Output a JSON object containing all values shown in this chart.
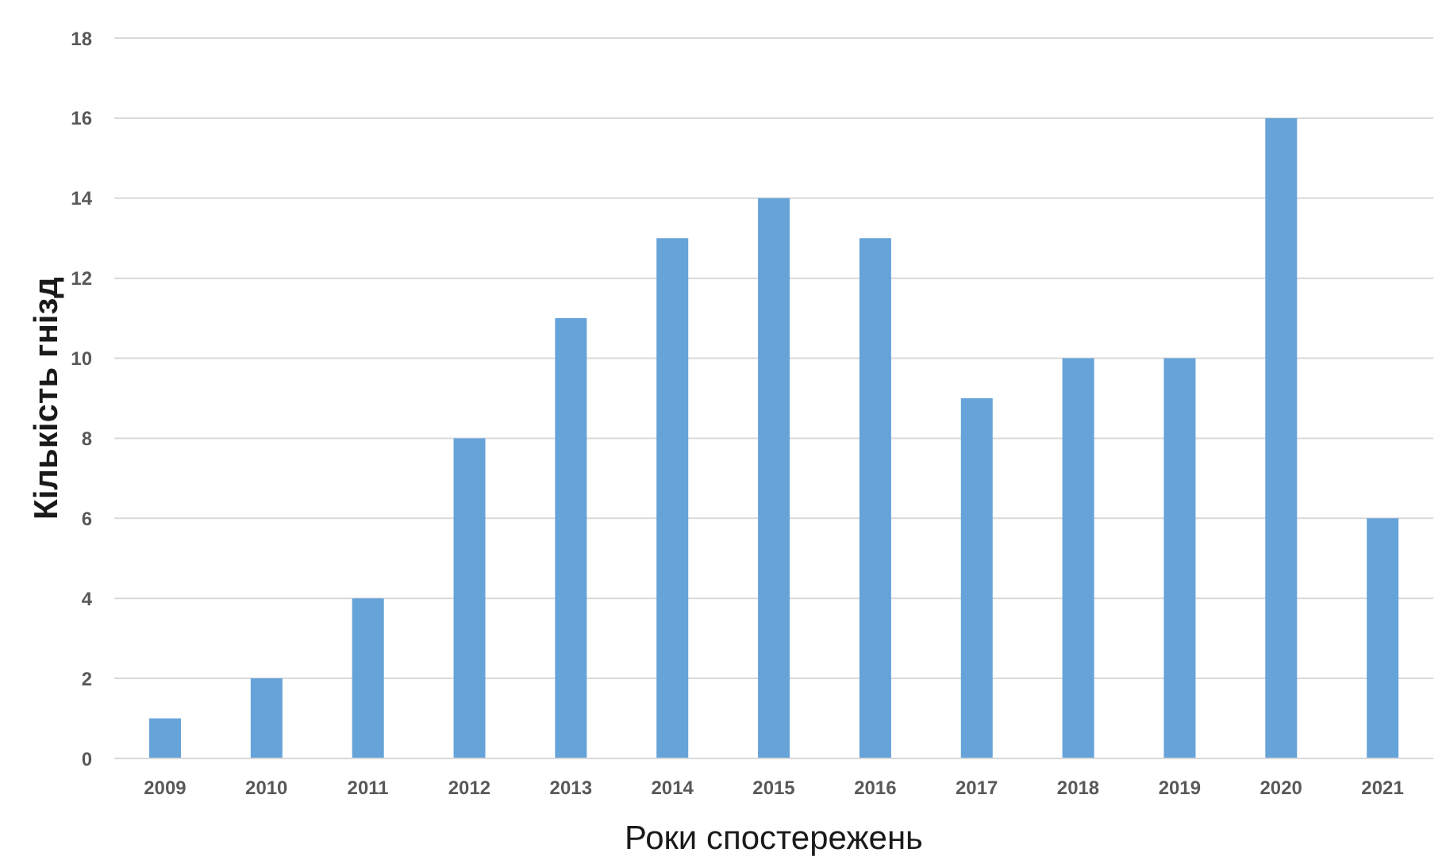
{
  "chart_data": {
    "type": "bar",
    "xlabel": "Роки спостережень",
    "ylabel": "Кількість гнізд",
    "categories": [
      "2009",
      "2010",
      "2011",
      "2012",
      "2013",
      "2014",
      "2015",
      "2016",
      "2017",
      "2018",
      "2019",
      "2020",
      "2021"
    ],
    "values": [
      1,
      2,
      4,
      8,
      11,
      13,
      14,
      13,
      9,
      10,
      10,
      16,
      6
    ],
    "color": "#66a3d9",
    "ylim": [
      0,
      18
    ],
    "yticks": [
      0,
      2,
      4,
      6,
      8,
      10,
      12,
      14,
      16,
      18
    ],
    "grid": "y"
  }
}
